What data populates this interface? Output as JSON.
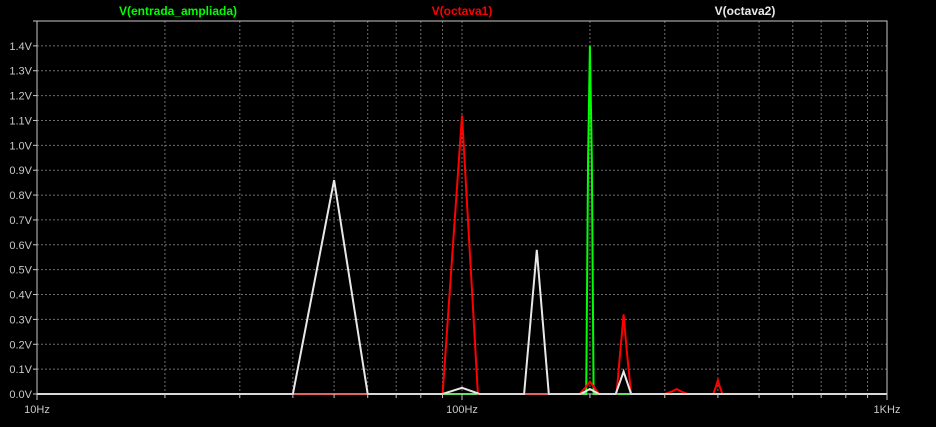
{
  "colors": {
    "background": "#000000",
    "frame": "#c8c8c8",
    "grid": "#6e6e6e",
    "tick_label": "#c8c8c8"
  },
  "chart_data": {
    "type": "line",
    "x_scale": "log",
    "xlim": [
      10,
      1000
    ],
    "ylim": [
      0,
      1.5
    ],
    "grid": true,
    "legend_placement": "top",
    "x_ticks": [
      {
        "value": 10,
        "label": "10Hz"
      },
      {
        "value": 100,
        "label": "100Hz"
      },
      {
        "value": 1000,
        "label": "1KHz"
      }
    ],
    "x_minor_ticks": [
      20,
      30,
      40,
      50,
      60,
      70,
      80,
      90,
      200,
      300,
      400,
      500,
      600,
      700,
      800,
      900
    ],
    "y_ticks": [
      {
        "value": 0.0,
        "label": "0.0V"
      },
      {
        "value": 0.1,
        "label": "0.1V"
      },
      {
        "value": 0.2,
        "label": "0.2V"
      },
      {
        "value": 0.3,
        "label": "0.3V"
      },
      {
        "value": 0.4,
        "label": "0.4V"
      },
      {
        "value": 0.5,
        "label": "0.5V"
      },
      {
        "value": 0.6,
        "label": "0.6V"
      },
      {
        "value": 0.7,
        "label": "0.7V"
      },
      {
        "value": 0.8,
        "label": "0.8V"
      },
      {
        "value": 0.9,
        "label": "0.9V"
      },
      {
        "value": 1.0,
        "label": "1.0V"
      },
      {
        "value": 1.1,
        "label": "1.1V"
      },
      {
        "value": 1.2,
        "label": "1.2V"
      },
      {
        "value": 1.3,
        "label": "1.3V"
      },
      {
        "value": 1.4,
        "label": "1.4V"
      },
      {
        "value": 1.5,
        "label": ""
      }
    ],
    "series": [
      {
        "name": "V(entrada_ampliada)",
        "color": "#00ff00",
        "x": [
          10,
          176,
          196,
          198,
          200,
          202,
          204,
          226,
          1000
        ],
        "y": [
          0,
          0,
          0,
          0.95,
          1.4,
          0.95,
          0,
          0,
          0
        ]
      },
      {
        "name": "V(octava1)",
        "color": "#ff0000",
        "x": [
          10,
          80,
          90,
          100,
          109,
          120,
          189,
          196,
          200,
          204,
          210,
          231,
          236,
          240,
          244,
          250,
          300,
          312,
          320,
          328,
          340,
          390,
          396,
          400,
          404,
          410,
          1000
        ],
        "y": [
          0,
          0,
          0,
          1.12,
          0,
          0,
          0,
          0.03,
          0.05,
          0.03,
          0,
          0,
          0.18,
          0.32,
          0.18,
          0,
          0,
          0.01,
          0.02,
          0.01,
          0,
          0,
          0.03,
          0.055,
          0.03,
          0,
          0
        ]
      },
      {
        "name": "V(octava2)",
        "color": "#e8e8e8",
        "x": [
          10,
          40,
          50,
          60,
          80,
          90,
          100,
          110,
          130,
          140,
          150,
          160,
          170,
          180,
          190,
          200,
          210,
          230,
          240,
          250,
          260,
          1000
        ],
        "y": [
          0,
          0,
          0.86,
          0,
          0,
          0,
          0.025,
          0,
          0,
          0,
          0.58,
          0,
          0,
          0,
          0,
          0.02,
          0,
          0,
          0.09,
          0,
          0,
          0
        ]
      }
    ]
  }
}
